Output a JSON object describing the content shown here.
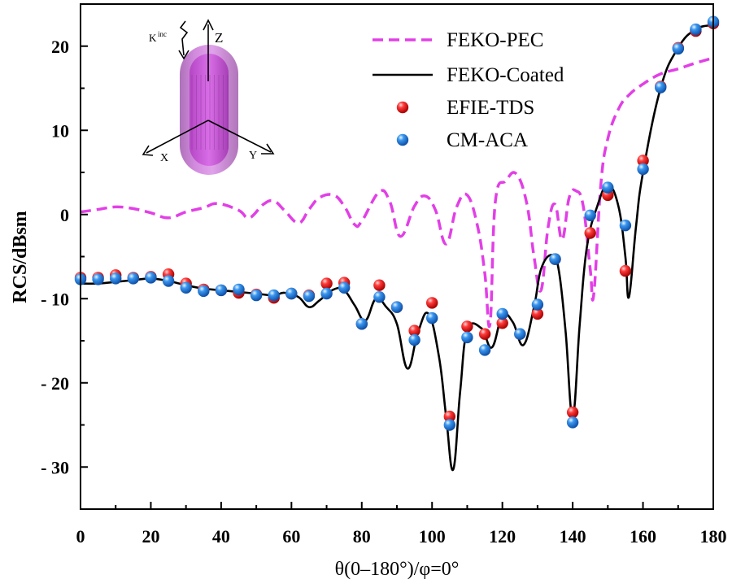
{
  "chart_data": {
    "type": "line",
    "xlabel": "θ(0–180°)/φ=0°",
    "ylabel": "RCS/dBsm",
    "xlim": [
      0,
      180
    ],
    "ylim": [
      -35,
      25
    ],
    "xticks": [
      0,
      20,
      40,
      60,
      80,
      100,
      120,
      140,
      160,
      180
    ],
    "yticks": [
      {
        "value": 20,
        "label": "20"
      },
      {
        "value": 10,
        "label": "10"
      },
      {
        "value": 0,
        "label": "0"
      },
      {
        "value": -10,
        "label": "- 10"
      },
      {
        "value": -20,
        "label": "- 20"
      },
      {
        "value": -30,
        "label": "- 30"
      }
    ],
    "grid": false,
    "legend_position": "top-right",
    "series": [
      {
        "name": "FEKO-PEC",
        "style": "dashed-line",
        "color": "#e23fe6",
        "x": [
          0,
          5,
          10,
          15,
          20,
          25,
          30,
          35,
          39,
          45,
          48,
          52,
          55,
          58,
          62,
          65,
          68,
          72,
          75,
          78,
          80,
          85,
          88,
          91,
          95,
          98,
          101,
          104,
          107,
          110,
          113,
          115,
          116.5,
          118,
          121,
          124,
          127,
          129,
          131,
          133,
          135,
          137,
          139,
          141,
          143,
          145,
          146,
          148,
          150,
          153,
          156,
          160,
          165,
          170,
          175,
          180
        ],
        "y": [
          0.3,
          0.6,
          0.9,
          0.7,
          0.2,
          -0.4,
          0.3,
          0.8,
          1.3,
          0.5,
          -0.4,
          1.2,
          1.6,
          0.5,
          -1.0,
          0.6,
          2.0,
          2.3,
          1.0,
          -1.2,
          -0.8,
          2.7,
          1.5,
          -2.6,
          1.0,
          2.2,
          0.5,
          -3.5,
          0.9,
          2.3,
          -1.5,
          -7.0,
          -13.0,
          1.5,
          4.0,
          4.8,
          1.2,
          -5.0,
          -9.0,
          -1.5,
          1.2,
          -3.0,
          2.0,
          2.8,
          1.0,
          -6.5,
          -9.5,
          3.5,
          9.0,
          12.5,
          14.2,
          15.5,
          16.7,
          17.3,
          18.0,
          18.6
        ]
      },
      {
        "name": "FEKO-Coated",
        "style": "solid-line",
        "color": "#000000",
        "x": [
          0,
          5,
          10,
          15,
          20,
          25,
          30,
          35,
          40,
          45,
          50,
          55,
          58,
          62,
          65,
          68,
          72,
          75,
          78,
          81,
          84,
          87,
          90,
          93,
          96,
          99,
          102,
          104,
          106,
          108,
          110,
          114,
          117,
          120,
          123,
          126,
          129,
          131,
          134,
          136,
          138,
          140,
          142,
          144,
          147,
          150,
          153,
          155,
          156,
          158,
          160,
          165,
          170,
          175,
          180
        ],
        "y": [
          -8.2,
          -8.2,
          -8.0,
          -7.8,
          -7.6,
          -7.9,
          -8.4,
          -8.8,
          -9.0,
          -9.2,
          -9.4,
          -9.6,
          -9.3,
          -9.8,
          -11.0,
          -10.2,
          -8.9,
          -9.0,
          -10.8,
          -12.6,
          -10.0,
          -11.0,
          -13.0,
          -18.3,
          -14.0,
          -11.8,
          -17.0,
          -24.0,
          -30.3,
          -21.0,
          -13.8,
          -13.5,
          -15.8,
          -12.0,
          -12.8,
          -15.5,
          -11.0,
          -6.5,
          -4.8,
          -6.5,
          -14.0,
          -24.0,
          -13.0,
          -4.0,
          1.0,
          3.5,
          1.0,
          -5.0,
          -9.8,
          -1.5,
          5.0,
          15.0,
          19.8,
          22.0,
          22.5
        ]
      },
      {
        "name": "EFIE-TDS",
        "style": "markers",
        "color": "#e8141b",
        "x": [
          0,
          5,
          10,
          15,
          20,
          25,
          30,
          35,
          40,
          45,
          50,
          55,
          60,
          65,
          70,
          75,
          80,
          85,
          90,
          95,
          100,
          105,
          110,
          115,
          120,
          125,
          130,
          135,
          140,
          145,
          150,
          155,
          160,
          165,
          170,
          175,
          180
        ],
        "y": [
          -7.5,
          -7.5,
          -7.2,
          -7.5,
          -7.4,
          -7.1,
          -8.2,
          -8.9,
          -9.0,
          -9.3,
          -9.5,
          -9.9,
          -9.4,
          -9.6,
          -8.2,
          -8.1,
          -13.0,
          -8.4,
          -11.0,
          -13.8,
          -10.5,
          -24.0,
          -13.3,
          -14.2,
          -12.9,
          -14.2,
          -11.8,
          -5.3,
          -23.5,
          -2.2,
          2.3,
          -6.7,
          6.4,
          15.2,
          19.8,
          21.8,
          22.7
        ]
      },
      {
        "name": "CM-ACA",
        "style": "markers",
        "color": "#2f80e6",
        "x": [
          0,
          5,
          10,
          15,
          20,
          25,
          30,
          35,
          40,
          45,
          50,
          55,
          60,
          65,
          70,
          75,
          80,
          85,
          90,
          95,
          100,
          105,
          110,
          115,
          120,
          125,
          130,
          135,
          140,
          145,
          150,
          155,
          160,
          165,
          170,
          175,
          180
        ],
        "y": [
          -7.7,
          -7.7,
          -7.6,
          -7.6,
          -7.5,
          -7.9,
          -8.7,
          -9.1,
          -9.0,
          -8.9,
          -9.6,
          -9.6,
          -9.4,
          -9.7,
          -9.4,
          -8.7,
          -13.0,
          -9.8,
          -11.0,
          -14.9,
          -12.3,
          -25.0,
          -14.6,
          -16.1,
          -11.8,
          -14.2,
          -10.7,
          -5.3,
          -24.7,
          -0.1,
          3.2,
          -1.3,
          5.4,
          15.1,
          19.7,
          22.0,
          22.9
        ]
      }
    ],
    "inset": {
      "k_label": "K",
      "k_sup": "inc",
      "axis_labels": [
        "Z",
        "X",
        "Y"
      ]
    }
  }
}
